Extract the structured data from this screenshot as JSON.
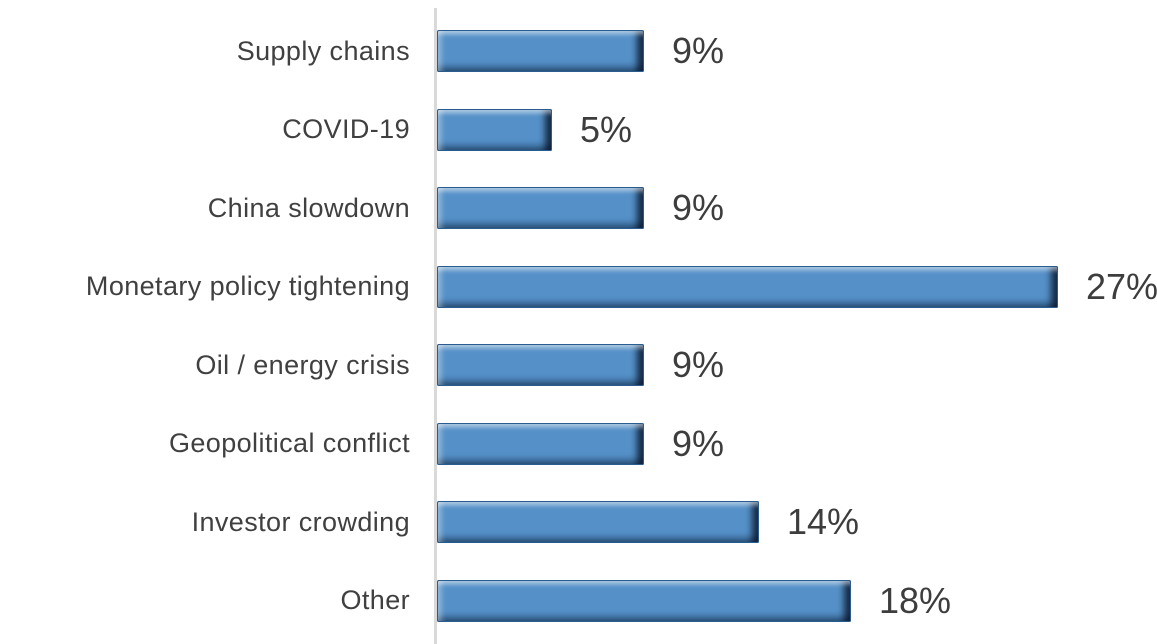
{
  "chart_data": {
    "type": "bar",
    "orientation": "horizontal",
    "title": "",
    "xlabel": "",
    "ylabel": "",
    "grid": false,
    "legend": false,
    "xlim": [
      0,
      27
    ],
    "categories": [
      "Supply chains",
      "COVID-19",
      "China slowdown",
      "Monetary policy tightening",
      "Oil / energy crisis",
      "Geopolitical conflict",
      "Investor crowding",
      "Other"
    ],
    "values": [
      9,
      5,
      9,
      27,
      9,
      9,
      14,
      18
    ],
    "value_labels": [
      "9%",
      "5%",
      "9%",
      "27%",
      "9%",
      "9%",
      "14%",
      "18%"
    ],
    "colors": {
      "bar_fill": "#5591c8",
      "bar_edge": "#2b5c8f",
      "axis_line": "#d9d9d9",
      "category_text": "#404040",
      "value_text": "#3d3d3d",
      "background": "#ffffff"
    }
  }
}
